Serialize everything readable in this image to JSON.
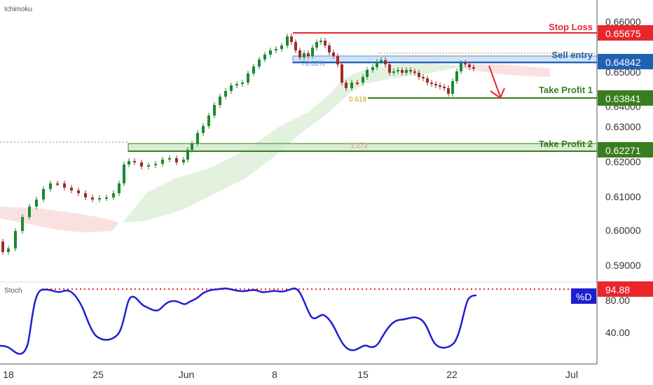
{
  "chart_data": {
    "type": "candlestick",
    "main_indicator": "Ichimoku",
    "sub_indicator": "Stoch",
    "price_axis": {
      "ticks": [
        {
          "value": 0.66,
          "label": "0.66000"
        },
        {
          "value": 0.65,
          "label": "0.65000"
        },
        {
          "value": 0.64,
          "label": "0.64000"
        },
        {
          "value": 0.63,
          "label": "0.63000"
        },
        {
          "value": 0.62,
          "label": "0.62000"
        },
        {
          "value": 0.61,
          "label": "0.61000"
        },
        {
          "value": 0.6,
          "label": "0.60000"
        },
        {
          "value": 0.59,
          "label": "0.59000"
        }
      ]
    },
    "stoch_axis": {
      "ticks": [
        {
          "value": 80,
          "label": "80.00"
        },
        {
          "value": 40,
          "label": "40.00"
        }
      ],
      "current": {
        "value": 94.88,
        "label": "94.88"
      },
      "series_label": "%D"
    },
    "x_axis": {
      "ticks": [
        {
          "day": 0,
          "label": "18"
        },
        {
          "day": 7,
          "label": "25"
        },
        {
          "day": 14,
          "label": "Jun"
        },
        {
          "day": 21,
          "label": "8"
        },
        {
          "day": 28,
          "label": "15"
        },
        {
          "day": 35,
          "label": "22"
        },
        {
          "day": 44,
          "label": "Jul"
        }
      ]
    },
    "levels": [
      {
        "name": "Stop Loss",
        "value": 0.65675,
        "label": "0.65675",
        "color": "#e8262c"
      },
      {
        "name": "Sell entry",
        "value": 0.64842,
        "label": "0.64842",
        "color": "#1f62b3"
      },
      {
        "name": "Take Profit 1",
        "value": 0.63841,
        "label": "0.63841",
        "color": "#3a7d1e"
      },
      {
        "name": "Take Profit 2",
        "value": 0.62271,
        "label": "0.62271",
        "color": "#3a7d1e"
      }
    ],
    "fib_labels": [
      {
        "label": "78.60%",
        "color": "#5a8fd0"
      },
      {
        "label": "0.618",
        "color": "#c8a000"
      },
      {
        "label": "1.272",
        "color": "#e89090"
      }
    ],
    "colors": {
      "up": "#1b8a2e",
      "down": "#a32a2a",
      "stoch_line": "#1f1fd0"
    }
  }
}
